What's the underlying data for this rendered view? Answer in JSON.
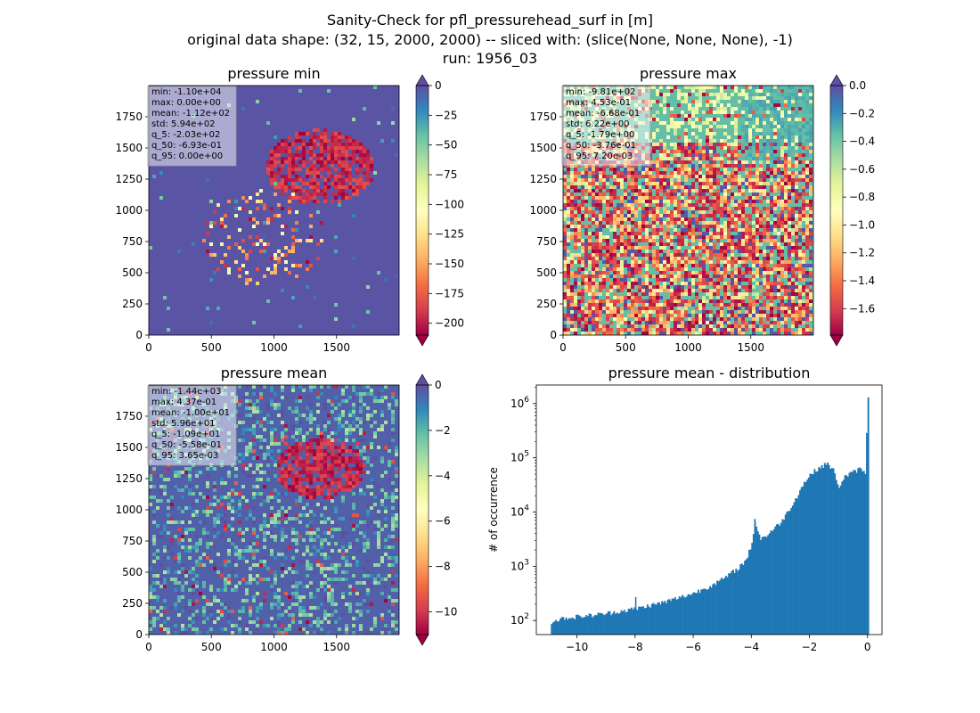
{
  "figure": {
    "title_lines": [
      "Sanity-Check for pfl_pressurehead_surf in [m]",
      "original data shape: (32, 15, 2000, 2000) -- sliced with: (slice(None, None, None), -1)",
      "run: 1956_03"
    ]
  },
  "chart_data": [
    {
      "type": "heatmap",
      "title": "pressure min",
      "colormap": "Spectral",
      "colorbar": {
        "min": -210,
        "max": 0,
        "ticks": [
          0,
          -25,
          -50,
          -75,
          -100,
          -125,
          -150,
          -175,
          -200
        ],
        "extend_top": true,
        "extend_bottom": true
      },
      "xlim": [
        0,
        2000
      ],
      "ylim": [
        0,
        2000
      ],
      "xticks": [
        0,
        500,
        1000,
        1500
      ],
      "yticks": [
        0,
        250,
        500,
        750,
        1000,
        1250,
        1500,
        1750
      ],
      "stats": [
        "min: -1.10e+04",
        "max: 0.00e+00",
        "mean: -1.12e+02",
        "std: 5.94e+02",
        "q_5: -2.03e+02",
        "q_50: -6.93e-01",
        "q_95: 0.00e+00"
      ]
    },
    {
      "type": "heatmap",
      "title": "pressure max",
      "colormap": "Spectral",
      "colorbar": {
        "min": -1.79,
        "max": 0.0,
        "ticks": [
          0.0,
          -0.2,
          -0.4,
          -0.6,
          -0.8,
          -1.0,
          -1.2,
          -1.4,
          -1.6
        ],
        "tick_labels": [
          "0.0",
          "−0.2",
          "−0.4",
          "−0.6",
          "−0.8",
          "−1.0",
          "−1.2",
          "−1.4",
          "−1.6"
        ],
        "extend_top": true,
        "extend_bottom": true
      },
      "xlim": [
        0,
        2000
      ],
      "ylim": [
        0,
        2000
      ],
      "xticks": [
        0,
        500,
        1000,
        1500
      ],
      "yticks": [
        0,
        250,
        500,
        750,
        1000,
        1250,
        1500,
        1750
      ],
      "stats": [
        "min: -9.81e+02",
        "max: 4.53e-01",
        "mean: -6.68e-01",
        "std: 6.22e+00",
        "q_5: -1.79e+00",
        "q_50: -3.76e-01",
        "q_95: 7.20e-03"
      ]
    },
    {
      "type": "heatmap",
      "title": "pressure mean",
      "colormap": "Spectral",
      "colorbar": {
        "min": -11,
        "max": 0,
        "ticks": [
          0,
          -2,
          -4,
          -6,
          -8,
          -10
        ],
        "extend_top": true,
        "extend_bottom": true
      },
      "xlim": [
        0,
        2000
      ],
      "ylim": [
        0,
        2000
      ],
      "xticks": [
        0,
        500,
        1000,
        1500
      ],
      "yticks": [
        0,
        250,
        500,
        750,
        1000,
        1250,
        1500,
        1750
      ],
      "stats": [
        "min: -1.44e+03",
        "max: 4.37e-01",
        "mean: -1.00e+01",
        "std: 5.96e+01",
        "q_5: -1.09e+01",
        "q_50: -5.58e-01",
        "q_95: 3.65e-03"
      ]
    },
    {
      "type": "bar",
      "title": "pressure mean - distribution",
      "ylabel": "# of occurrence",
      "xlabel": "",
      "yscale": "log",
      "xlim": [
        -11.4,
        0.5
      ],
      "ylim": [
        55,
        2200000
      ],
      "xticks": [
        -10,
        -8,
        -6,
        -4,
        -2,
        0
      ],
      "yticks": [
        100,
        1000,
        10000,
        100000,
        1000000
      ],
      "bin_width": 0.05,
      "color": "#1f77b4",
      "bins": [
        [
          -10.9,
          95
        ],
        [
          -10.5,
          110
        ],
        [
          -10.0,
          118
        ],
        [
          -9.5,
          125
        ],
        [
          -9.0,
          135
        ],
        [
          -8.5,
          150
        ],
        [
          -8.0,
          165
        ],
        [
          -7.5,
          190
        ],
        [
          -7.0,
          220
        ],
        [
          -6.5,
          265
        ],
        [
          -6.0,
          320
        ],
        [
          -5.5,
          420
        ],
        [
          -5.0,
          580
        ],
        [
          -4.5,
          900
        ],
        [
          -4.2,
          1300
        ],
        [
          -4.0,
          2600
        ],
        [
          -3.9,
          7000
        ],
        [
          -3.8,
          4500
        ],
        [
          -3.7,
          3200
        ],
        [
          -3.5,
          3700
        ],
        [
          -3.0,
          6500
        ],
        [
          -2.6,
          14000
        ],
        [
          -2.4,
          22000
        ],
        [
          -2.2,
          35000
        ],
        [
          -2.0,
          48000
        ],
        [
          -1.8,
          60000
        ],
        [
          -1.6,
          70000
        ],
        [
          -1.4,
          78000
        ],
        [
          -1.2,
          60000
        ],
        [
          -1.1,
          38000
        ],
        [
          -1.0,
          30000
        ],
        [
          -0.8,
          45000
        ],
        [
          -0.5,
          55000
        ],
        [
          -0.3,
          62000
        ],
        [
          -0.1,
          55000
        ],
        [
          0.0,
          1300000
        ]
      ],
      "spikes": [
        [
          -8.0,
          270
        ],
        [
          -3.9,
          7500
        ]
      ]
    }
  ]
}
